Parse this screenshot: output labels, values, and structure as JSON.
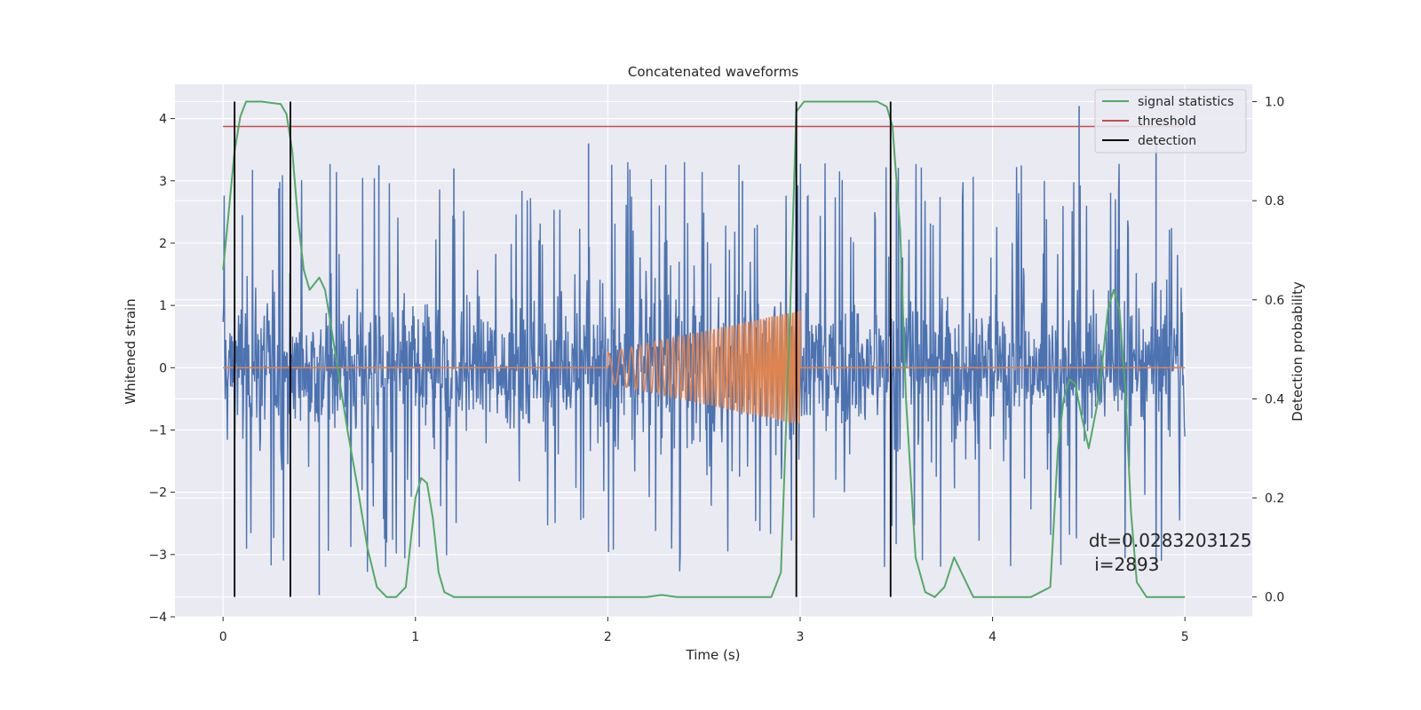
{
  "chart_data": {
    "type": "line",
    "title": "Concatenated waveforms",
    "xlabel": "Time (s)",
    "ylabel": "Whitened strain",
    "ylabel_right": "Detection probability",
    "xlim": [
      -0.25,
      5.35
    ],
    "ylim": [
      -4.0,
      4.55
    ],
    "ylim_right": [
      -0.04,
      1.035
    ],
    "x_ticks": [
      0,
      1,
      2,
      3,
      4,
      5
    ],
    "y_ticks": [
      -4,
      -3,
      -2,
      -1,
      0,
      1,
      2,
      3,
      4
    ],
    "y_ticks_right": [
      0.0,
      0.2,
      0.4,
      0.6,
      0.8,
      1.0
    ],
    "y_tick_labels_right": [
      "0.0",
      "0.2",
      "0.4",
      "0.6",
      "0.8",
      "1.0"
    ],
    "grid": true,
    "legend_position": "top-right",
    "colors": {
      "strain": "#4c72b0",
      "template": "#dd8452",
      "statistics": "#55a868",
      "threshold": "#c44e52",
      "detection": "#000000",
      "background": "#eaeaf2",
      "grid": "#ffffff"
    },
    "series": [
      {
        "name": "",
        "kind": "whitened-strain-noise",
        "axis": "left",
        "x_range": [
          0,
          5
        ],
        "envelope": {
          "base_amplitude": 1.3,
          "spike_max": 3.3,
          "min_spike": -3.65
        },
        "peaks": [
          {
            "x": 0.1,
            "y": 2.45
          },
          {
            "x": 0.29,
            "y": 2.88
          },
          {
            "x": 0.5,
            "y": -3.65
          },
          {
            "x": 0.81,
            "y": 3.25
          },
          {
            "x": 1.2,
            "y": 3.2
          },
          {
            "x": 1.9,
            "y": 3.6
          },
          {
            "x": 2.7,
            "y": 3.0
          },
          {
            "x": 3.5,
            "y": 3.0
          },
          {
            "x": 4.45,
            "y": 4.2
          },
          {
            "x": 4.85,
            "y": 3.65
          }
        ]
      },
      {
        "name": "",
        "kind": "chirp-template",
        "axis": "left",
        "flat_value": 0,
        "chirp_start": 2.0,
        "chirp_end": 3.0,
        "start_amplitude": 0.25,
        "end_amplitude": 0.92
      },
      {
        "name": "signal statistics",
        "axis": "right",
        "x": [
          0.0,
          0.03,
          0.06,
          0.09,
          0.12,
          0.2,
          0.3,
          0.33,
          0.36,
          0.39,
          0.42,
          0.45,
          0.5,
          0.53,
          0.56,
          0.6,
          0.65,
          0.7,
          0.75,
          0.8,
          0.85,
          0.9,
          0.95,
          1.0,
          1.03,
          1.06,
          1.09,
          1.12,
          1.15,
          1.2,
          1.3,
          1.5,
          2.0,
          2.2,
          2.28,
          2.36,
          2.6,
          2.85,
          2.9,
          2.95,
          2.98,
          3.02,
          3.1,
          3.4,
          3.45,
          3.48,
          3.52,
          3.55,
          3.6,
          3.65,
          3.7,
          3.75,
          3.8,
          3.85,
          3.9,
          4.0,
          4.2,
          4.3,
          4.34,
          4.37,
          4.4,
          4.43,
          4.46,
          4.5,
          4.55,
          4.6,
          4.63,
          4.66,
          4.69,
          4.72,
          4.75,
          4.8,
          4.9,
          5.0
        ],
        "y": [
          0.66,
          0.78,
          0.9,
          0.97,
          1.0,
          1.0,
          0.995,
          0.975,
          0.9,
          0.76,
          0.66,
          0.62,
          0.645,
          0.62,
          0.55,
          0.45,
          0.33,
          0.22,
          0.1,
          0.02,
          0.0,
          0.0,
          0.02,
          0.2,
          0.24,
          0.23,
          0.16,
          0.05,
          0.01,
          0.0,
          0.0,
          0.0,
          0.0,
          0.0,
          0.004,
          0.0,
          0.0,
          0.0,
          0.05,
          0.6,
          0.98,
          1.0,
          1.0,
          1.0,
          0.99,
          0.95,
          0.74,
          0.4,
          0.08,
          0.01,
          0.0,
          0.02,
          0.08,
          0.04,
          0.0,
          0.0,
          0.0,
          0.02,
          0.3,
          0.4,
          0.44,
          0.43,
          0.37,
          0.3,
          0.4,
          0.58,
          0.62,
          0.58,
          0.42,
          0.17,
          0.03,
          0.0,
          0.0,
          0.0
        ]
      },
      {
        "name": "threshold",
        "axis": "right",
        "x": [
          0,
          5
        ],
        "y": [
          0.95,
          0.95
        ]
      },
      {
        "name": "detection",
        "axis": "right",
        "kind": "vertical-lines",
        "positions": [
          0.06,
          0.35,
          2.98,
          3.47
        ],
        "y_range": [
          0.0,
          1.0
        ]
      }
    ],
    "annotation": {
      "line1": "dt=0.0283203125",
      "line2": " i=2893",
      "x": 4.5,
      "y": 0.1
    }
  }
}
